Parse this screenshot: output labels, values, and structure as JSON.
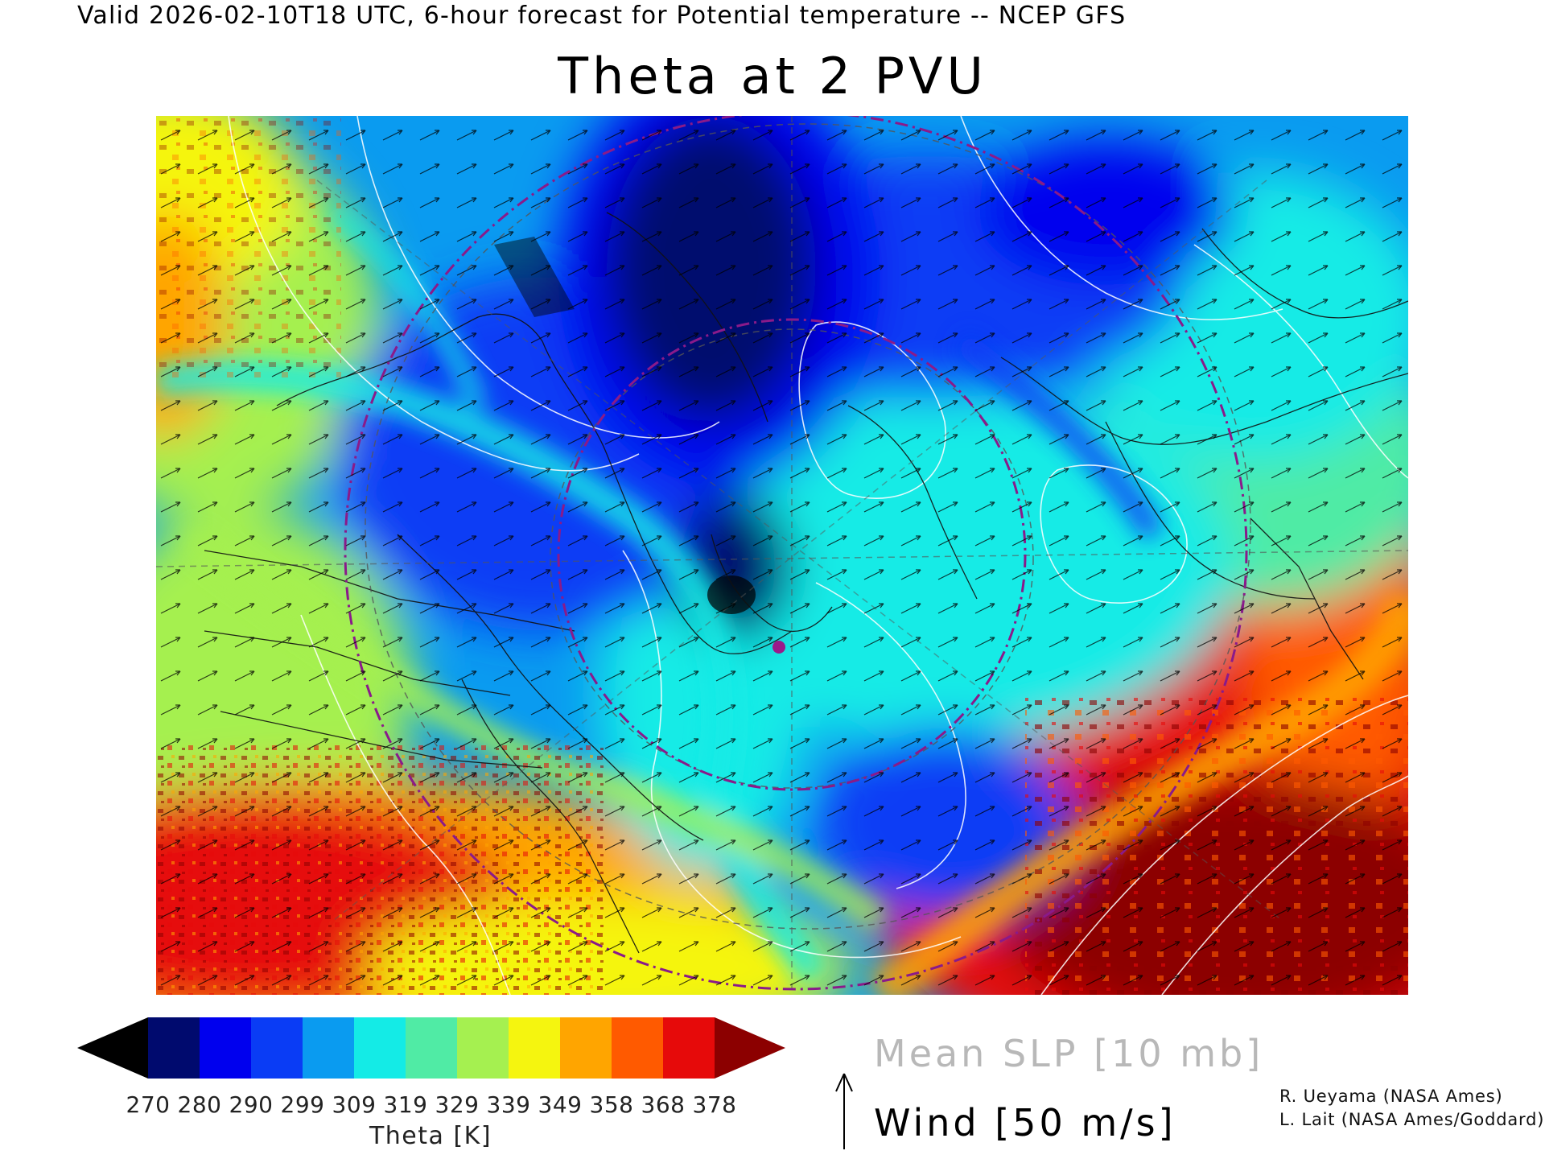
{
  "header": {
    "valid_line": "Valid 2026-02-10T18 UTC, 6-hour forecast for Potential temperature -- NCEP GFS",
    "title": "Theta at 2 PVU"
  },
  "map": {
    "field": "Potential temperature on the 2 PVU surface",
    "overlays": [
      "mean-sea-level-pressure-contours",
      "wind-vectors",
      "coastlines",
      "political-borders",
      "lat-lon-grid"
    ],
    "palette": {
      "below_min": "#000000",
      "levels": [
        "#000a6e",
        "#0000ee",
        "#0a3cf5",
        "#0a9bf0",
        "#14ebe6",
        "#50eba5",
        "#a5f050",
        "#f5f50f",
        "#ffa500",
        "#ff5a00",
        "#e60a0a"
      ],
      "above_max": "#8c0000"
    }
  },
  "colorbar": {
    "ticks": [
      "270",
      "280",
      "290",
      "299",
      "309",
      "319",
      "329",
      "339",
      "349",
      "358",
      "368",
      "378"
    ],
    "title": "Theta [K]"
  },
  "legend": {
    "slp_label": "Mean SLP [10 mb]",
    "wind_label": "Wind [50 m/s]"
  },
  "credits": {
    "line1": "R. Ueyama (NASA Ames)",
    "line2": "L. Lait (NASA Ames/Goddard)"
  }
}
